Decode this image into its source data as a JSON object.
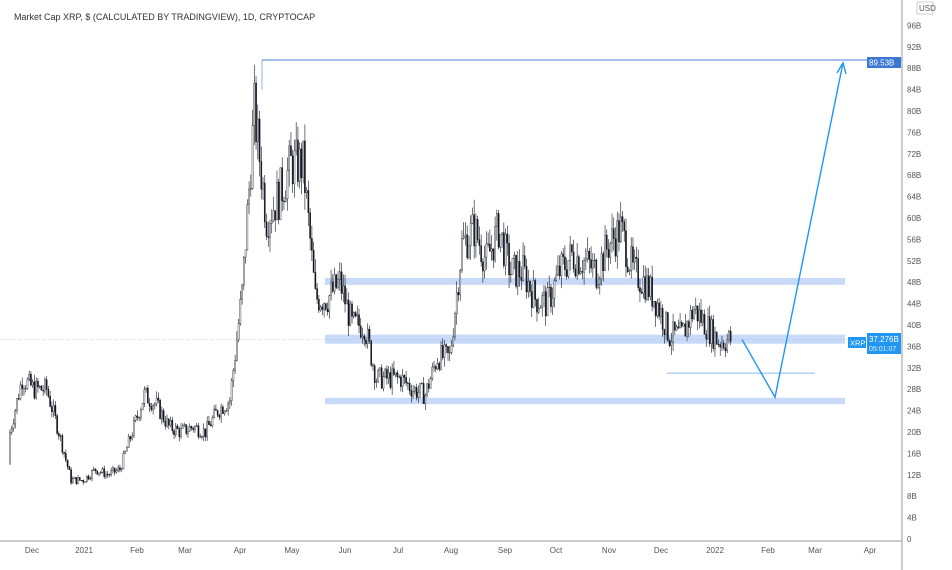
{
  "header": {
    "title": "Market Cap XRP, $ (CALCULATED BY TRADINGVIEW), 1D, CRYPTOCAP",
    "currency": "USD"
  },
  "price_label": {
    "symbol": "XRP",
    "value": "37.276B",
    "countdown": "05:01:07"
  },
  "target_label": "89.53B",
  "colors": {
    "candle": "#131722",
    "accent": "#2196f3",
    "zone": "#c9daf8",
    "line": "#4a7fd8"
  },
  "chart_data": {
    "type": "candlestick",
    "title": "Market Cap XRP, $ (CALCULATED BY TRADINGVIEW), 1D, CRYPTOCAP",
    "ylabel": "USD",
    "ylim": [
      0,
      98
    ],
    "y_ticks": [
      "0",
      "4B",
      "8B",
      "12B",
      "16B",
      "20B",
      "24B",
      "28B",
      "32B",
      "36B",
      "40B",
      "44B",
      "48B",
      "52B",
      "56B",
      "60B",
      "64B",
      "68B",
      "72B",
      "76B",
      "80B",
      "84B",
      "88B",
      "92B",
      "96B"
    ],
    "x_ticks": [
      "Dec",
      "2021",
      "Feb",
      "Mar",
      "Apr",
      "May",
      "Jun",
      "Jul",
      "Aug",
      "Sep",
      "Oct",
      "Nov",
      "Dec",
      "2022",
      "Feb",
      "Mar",
      "Apr"
    ],
    "weekly_close_approx_B": [
      20,
      30,
      28,
      28,
      20,
      11,
      11,
      13,
      12,
      13,
      20,
      27,
      25,
      21,
      20,
      21,
      20,
      24,
      26,
      46,
      80,
      60,
      64,
      70,
      70,
      45,
      45,
      48,
      40,
      40,
      30,
      30,
      30,
      28,
      27,
      34,
      34,
      55,
      58,
      52,
      58,
      50,
      50,
      45,
      44,
      50,
      53,
      52,
      50,
      55,
      58,
      50,
      48,
      44,
      38,
      38,
      43,
      40,
      37,
      37.3
    ],
    "last_price_B": 37.276,
    "annotations": {
      "target_level_B": 89.53,
      "zones_B": [
        [
          47.5,
          48.8
        ],
        [
          36.5,
          38.2
        ],
        [
          25.2,
          26.4
        ]
      ],
      "support_line_B": 31,
      "projected_path_B": [
        37.3,
        26.5,
        89
      ]
    }
  }
}
